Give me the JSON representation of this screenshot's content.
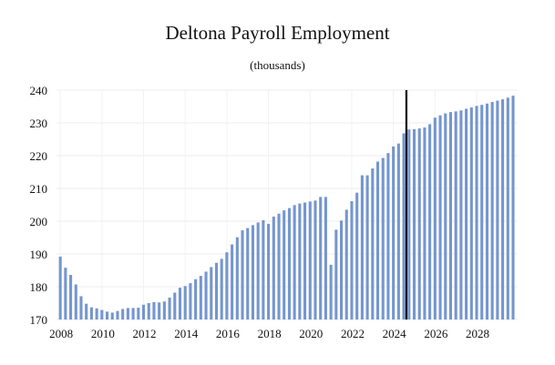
{
  "chart_data": {
    "type": "bar",
    "title": "Deltona Payroll Employment",
    "subtitle": "(thousands)",
    "xlabel": "",
    "ylabel": "",
    "ylim": [
      170,
      240
    ],
    "yticks": [
      170,
      180,
      190,
      200,
      210,
      220,
      230,
      240
    ],
    "xticks": [
      "2008",
      "2010",
      "2012",
      "2014",
      "2016",
      "2018",
      "2020",
      "2022",
      "2024",
      "2026",
      "2028"
    ],
    "x_start": "2008Q1",
    "forecast_marker_after": "2024Q3",
    "grid": true,
    "bar_color": "#7596cf",
    "marker_color": "#000000",
    "series": [
      {
        "values": [
          189.2,
          185.8,
          183.6,
          180.7,
          177.1,
          174.8,
          173.7,
          173.4,
          172.9,
          172.4,
          172.1,
          172.6,
          173.2,
          173.5,
          173.5,
          173.6,
          174.5,
          175.0,
          175.3,
          175.2,
          175.5,
          176.7,
          178.2,
          179.7,
          180.2,
          181.1,
          182.3,
          183.3,
          184.6,
          186.0,
          187.3,
          188.5,
          190.5,
          192.9,
          195.1,
          197.2,
          197.9,
          198.8,
          199.6,
          200.3,
          199.2,
          201.4,
          202.3,
          203.3,
          204.0,
          204.9,
          205.4,
          205.7,
          206.0,
          206.3,
          207.4,
          207.4,
          186.7,
          197.4,
          200.2,
          203.5,
          206.1,
          208.7,
          214.0,
          214.0,
          216.1,
          218.2,
          219.3,
          220.8,
          222.8,
          223.7,
          226.8,
          228.0,
          228.1,
          228.3,
          228.6,
          229.6,
          231.6,
          232.3,
          232.9,
          233.3,
          233.5,
          233.8,
          234.3,
          234.7,
          235.2,
          235.5,
          235.9,
          236.4,
          236.8,
          237.2,
          237.7,
          238.3
        ]
      }
    ]
  }
}
